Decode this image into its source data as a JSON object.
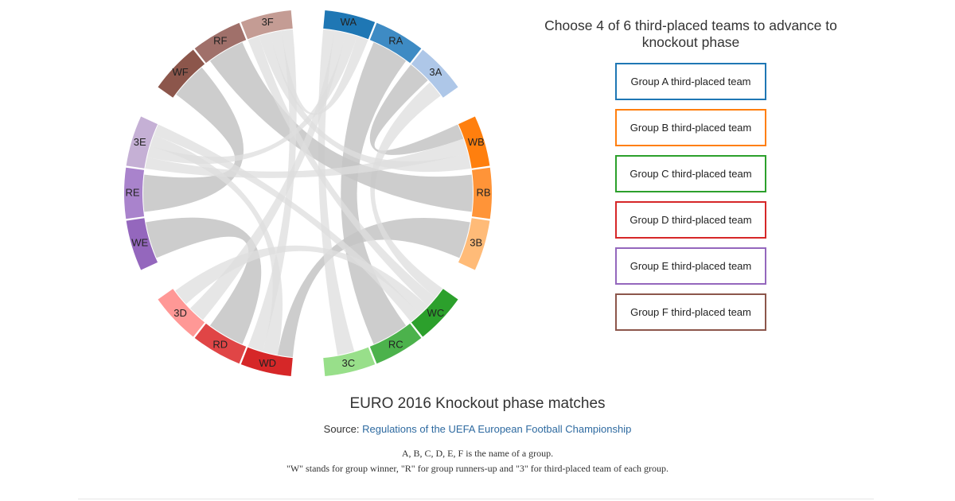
{
  "panel": {
    "title": "Choose 4 of 6 third-placed teams to advance to knockout phase",
    "buttons": [
      {
        "label": "Group A third-placed team",
        "color": "#1f77b4"
      },
      {
        "label": "Group B third-placed team",
        "color": "#ff7f0e"
      },
      {
        "label": "Group C third-placed team",
        "color": "#2ca02c"
      },
      {
        "label": "Group D third-placed team",
        "color": "#d62728"
      },
      {
        "label": "Group E third-placed team",
        "color": "#9467bd"
      },
      {
        "label": "Group F third-placed team",
        "color": "#8c564b"
      }
    ]
  },
  "footer": {
    "title": "EURO 2016 Knockout phase matches",
    "source_prefix": "Source:",
    "source_link": "Regulations of the UEFA European Football Championship",
    "note_line1": "A, B, C, D, E, F is the name of a group.",
    "note_line2": "\"W\" stands for group winner, \"R\" for group runners-up and \"3\" for third-placed team of each group."
  },
  "chart_data": {
    "type": "chord",
    "segments": [
      {
        "id": "WA",
        "label": "WA",
        "color": "#1f77b4"
      },
      {
        "id": "RA",
        "label": "RA",
        "color": "#3e8bc4"
      },
      {
        "id": "3A",
        "label": "3A",
        "color": "#aec7e8"
      },
      {
        "id": "WB",
        "label": "WB",
        "color": "#ff7f0e"
      },
      {
        "id": "RB",
        "label": "RB",
        "color": "#ff9438"
      },
      {
        "id": "3B",
        "label": "3B",
        "color": "#ffbb78"
      },
      {
        "id": "WC",
        "label": "WC",
        "color": "#2ca02c"
      },
      {
        "id": "RC",
        "label": "RC",
        "color": "#4cb24c"
      },
      {
        "id": "3C",
        "label": "3C",
        "color": "#98df8a"
      },
      {
        "id": "WD",
        "label": "WD",
        "color": "#d62728"
      },
      {
        "id": "RD",
        "label": "RD",
        "color": "#e04546"
      },
      {
        "id": "3D",
        "label": "3D",
        "color": "#ff9896"
      },
      {
        "id": "WE",
        "label": "WE",
        "color": "#9467bd"
      },
      {
        "id": "RE",
        "label": "RE",
        "color": "#a983cc"
      },
      {
        "id": "3E",
        "label": "3E",
        "color": "#c5b0d5"
      },
      {
        "id": "WF",
        "label": "WF",
        "color": "#8c564b"
      },
      {
        "id": "RF",
        "label": "RF",
        "color": "#a0706a"
      },
      {
        "id": "3F",
        "label": "3F",
        "color": "#c49c94"
      }
    ],
    "matches": [
      [
        "RA",
        "RC",
        "main"
      ],
      [
        "WD",
        "3B",
        "main"
      ],
      [
        "WB",
        "3A",
        "main"
      ],
      [
        "WF",
        "RE",
        "main"
      ],
      [
        "WC",
        "3A",
        "light"
      ],
      [
        "WE",
        "RD",
        "main"
      ],
      [
        "WA",
        "3C",
        "light"
      ],
      [
        "RB",
        "RF",
        "main"
      ],
      [
        "WA",
        "3D",
        "light"
      ],
      [
        "WB",
        "3E",
        "light"
      ],
      [
        "WC",
        "3F",
        "light"
      ],
      [
        "WA",
        "3E",
        "light"
      ],
      [
        "WB",
        "3F",
        "light"
      ],
      [
        "WC",
        "3D",
        "light"
      ],
      [
        "WD",
        "3E",
        "light"
      ],
      [
        "WA",
        "3F",
        "light"
      ],
      [
        "WC",
        "3E",
        "light"
      ],
      [
        "WD",
        "3F",
        "light"
      ]
    ]
  }
}
